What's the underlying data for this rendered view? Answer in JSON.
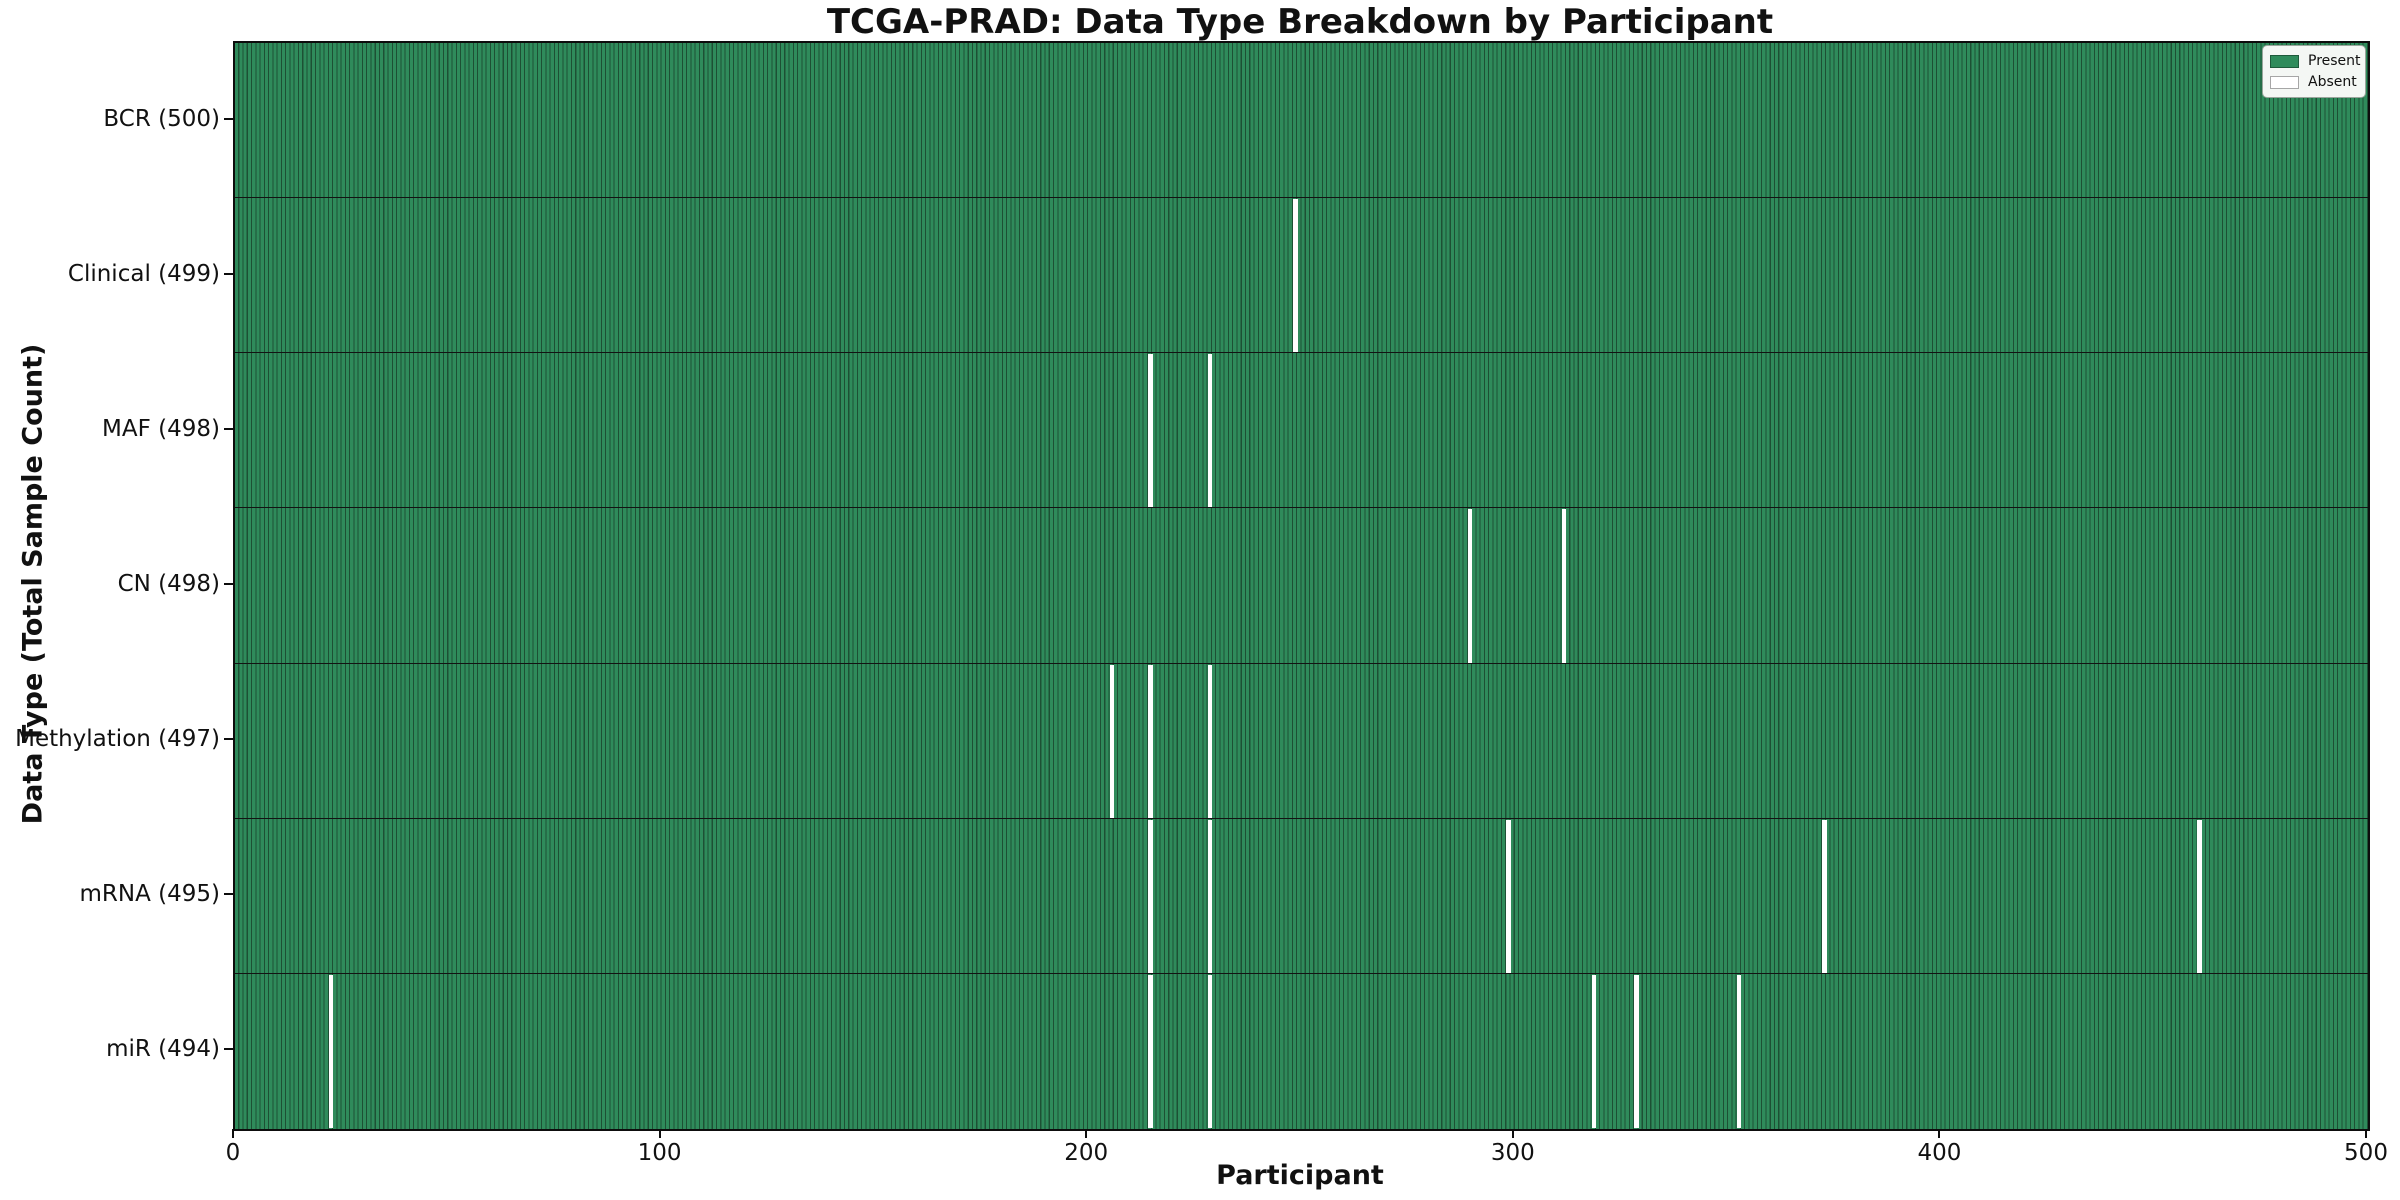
{
  "title": "TCGA-PRAD: Data Type Breakdown by Participant",
  "x_axis": {
    "label": "Participant",
    "ticks": [
      0,
      100,
      200,
      300,
      400,
      500
    ],
    "min": 0,
    "max": 500
  },
  "y_axis": {
    "label": "Data Type (Total Sample Count)"
  },
  "legend": {
    "items": [
      {
        "label": "Present",
        "color": "#2f8b5b"
      },
      {
        "label": "Absent",
        "color": "#ffffff"
      }
    ]
  },
  "colors": {
    "present_fill": "#2f8b5b",
    "present_edge": "#1d5034",
    "absent_fill": "#ffffff",
    "row_divider": "#131313",
    "axis_spine": "#0d0d0d",
    "legend_background": "#f4f7f4",
    "legend_border": "#9aa59c"
  },
  "chart_data": {
    "type": "heatmap",
    "title": "TCGA-PRAD: Data Type Breakdown by Participant",
    "xlabel": "Participant",
    "ylabel": "Data Type (Total Sample Count)",
    "x_range": [
      0,
      500
    ],
    "total_participants": 500,
    "legend_position": "upper right",
    "rows": [
      {
        "key": "bcr",
        "label": "BCR (500)",
        "data_type": "BCR",
        "present_count": 500,
        "absent_count": 0,
        "absent_participants": []
      },
      {
        "key": "clinical",
        "label": "Clinical (499)",
        "data_type": "Clinical",
        "present_count": 499,
        "absent_count": 1,
        "absent_participants": [
          248
        ]
      },
      {
        "key": "maf",
        "label": "MAF (498)",
        "data_type": "MAF",
        "present_count": 498,
        "absent_count": 2,
        "absent_participants": [
          214,
          228
        ]
      },
      {
        "key": "cn",
        "label": "CN (498)",
        "data_type": "CN",
        "present_count": 498,
        "absent_count": 2,
        "absent_participants": [
          289,
          311
        ]
      },
      {
        "key": "methylation",
        "label": "Methylation (497)",
        "data_type": "Methylation",
        "present_count": 497,
        "absent_count": 3,
        "absent_participants": [
          205,
          214,
          228
        ]
      },
      {
        "key": "mrna",
        "label": "mRNA (495)",
        "data_type": "mRNA",
        "present_count": 495,
        "absent_count": 5,
        "absent_participants": [
          214,
          228,
          298,
          372,
          460
        ]
      },
      {
        "key": "mir",
        "label": "miR (494)",
        "data_type": "miR",
        "present_count": 494,
        "absent_count": 6,
        "absent_participants": [
          22,
          214,
          228,
          318,
          328,
          352
        ]
      }
    ]
  }
}
